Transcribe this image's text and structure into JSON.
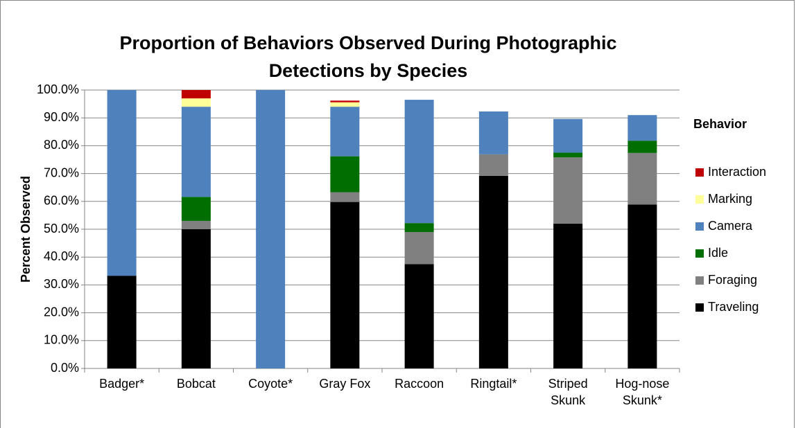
{
  "chart_data": {
    "type": "stacked_bar",
    "title": "Proportion of Behaviors Observed During Photographic Detections by Species",
    "y_label": "Percent Observed",
    "legend_title": "Behavior",
    "legend_position": "right",
    "grid": true,
    "categories": [
      "Badger*",
      "Bobcat",
      "Coyote*",
      "Gray Fox",
      "Raccoon",
      "Ringtail*",
      "Striped Skunk",
      "Hog-nose Skunk*"
    ],
    "series": [
      {
        "name": "Traveling",
        "color": "#000000",
        "values": [
          33.3,
          50,
          0,
          59.8,
          37.5,
          69.2,
          52,
          58.9
        ]
      },
      {
        "name": "Foraging",
        "color": "#808080",
        "values": [
          0,
          3,
          0,
          3.5,
          11.5,
          7.7,
          23.8,
          18.5
        ]
      },
      {
        "name": "Idle",
        "color": "#006e00",
        "values": [
          0,
          8.6,
          0,
          12.9,
          3.2,
          0,
          1.7,
          4.4
        ]
      },
      {
        "name": "Camera",
        "color": "#4f81bd",
        "values": [
          66.7,
          32.4,
          100,
          17.8,
          44.3,
          15.4,
          12.1,
          9.2
        ]
      },
      {
        "name": "Marking",
        "color": "#ffff99",
        "values": [
          0,
          3,
          0,
          1.6,
          0,
          0,
          0,
          0
        ]
      },
      {
        "name": "Interaction",
        "color": "#c00000",
        "values": [
          0,
          3,
          0,
          0.6,
          0,
          0,
          0,
          0
        ]
      }
    ],
    "ylim": [
      0,
      100
    ],
    "yticks": [
      {
        "value": 0,
        "label": "0.0%"
      },
      {
        "value": 10,
        "label": "10.0%"
      },
      {
        "value": 20,
        "label": "20.0%"
      },
      {
        "value": 30,
        "label": "30.0%"
      },
      {
        "value": 40,
        "label": "40.0%"
      },
      {
        "value": 50,
        "label": "50.0%"
      },
      {
        "value": 60,
        "label": "60.0%"
      },
      {
        "value": 70,
        "label": "70.0%"
      },
      {
        "value": 80,
        "label": "80.0%"
      },
      {
        "value": 90,
        "label": "90.0%"
      },
      {
        "value": 100,
        "label": "100.0%"
      }
    ]
  }
}
